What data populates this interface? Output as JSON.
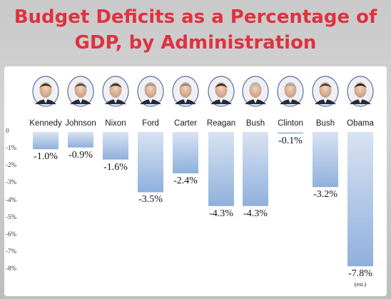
{
  "title_line1": "Budget Deficits as a Percentage of",
  "title_line2": "GDP, by Administration",
  "colors": {
    "title": "#e0313f",
    "bar_top": "#d9e3f2",
    "bar_bottom": "#8fb0dd",
    "background": "#c9c9c9"
  },
  "chart_data": {
    "type": "bar",
    "title": "Budget Deficits as a Percentage of GDP, by Administration",
    "categories": [
      "Kennedy",
      "Johnson",
      "Nixon",
      "Ford",
      "Carter",
      "Reagan",
      "Bush",
      "Clinton",
      "Bush",
      "Obama"
    ],
    "values": [
      -1.0,
      -0.9,
      -1.6,
      -3.5,
      -2.4,
      -4.3,
      -4.3,
      -0.1,
      -3.2,
      -7.8
    ],
    "value_labels": [
      "-1.0%",
      "-0.9%",
      "-1.6%",
      "-3.5%",
      "-2.4%",
      "-4.3%",
      "-4.3%",
      "-0.1%",
      "-3.2%",
      "-7.8%"
    ],
    "annotations": [
      {
        "category_index": 9,
        "text": "(est.)"
      }
    ],
    "yticks": [
      "0",
      "-1%",
      "-2%",
      "-3%",
      "-4%",
      "-5%",
      "-6%",
      "-7%",
      "-8%"
    ],
    "ylim": [
      -8,
      0
    ],
    "grid": false,
    "legend": "none",
    "portraits": "head-and-shoulders photo of each president above each column"
  }
}
